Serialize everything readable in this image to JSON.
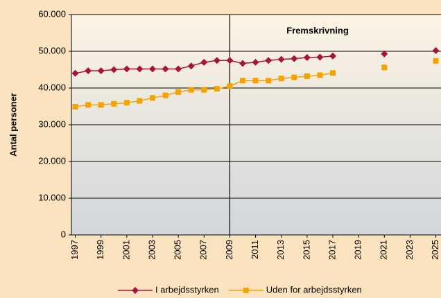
{
  "chart_data": {
    "type": "line",
    "ylabel": "Antal personer",
    "annotation": "Fremskrivning",
    "divider_x": 2009,
    "x": [
      1997,
      1998,
      1999,
      2000,
      2001,
      2002,
      2003,
      2004,
      2005,
      2006,
      2007,
      2008,
      2009,
      2010,
      2011,
      2012,
      2013,
      2014,
      2015,
      2016,
      2017,
      2018,
      2019,
      2020,
      2021,
      2022,
      2023,
      2024,
      2025
    ],
    "series": [
      {
        "name": "I arbejdsstyrken",
        "color": "#a8123e",
        "marker": "diamond",
        "values": [
          44000,
          44700,
          44700,
          45000,
          45200,
          45200,
          45200,
          45200,
          45200,
          46000,
          47000,
          47500,
          47500,
          46700,
          47000,
          47500,
          47800,
          48000,
          48300,
          48400,
          48700,
          null,
          null,
          null,
          49300,
          null,
          null,
          null,
          50200
        ]
      },
      {
        "name": "Uden for arbejdsstyrken",
        "color": "#f4a200",
        "marker": "square",
        "values": [
          34900,
          35400,
          35400,
          35700,
          36000,
          36500,
          37300,
          38000,
          38900,
          39500,
          39500,
          39800,
          40500,
          42000,
          42000,
          42000,
          42600,
          42900,
          43200,
          43500,
          44100,
          null,
          null,
          null,
          45600,
          null,
          null,
          null,
          47400
        ]
      }
    ],
    "xlim": [
      1996.7,
      2025.4
    ],
    "xticks": [
      1997,
      1999,
      2001,
      2003,
      2005,
      2007,
      2009,
      2011,
      2013,
      2015,
      2017,
      2019,
      2021,
      2023,
      2025
    ],
    "ylim": [
      0,
      60000
    ],
    "yticks": [
      {
        "value": 0,
        "label": "0"
      },
      {
        "value": 10000,
        "label": "10.000"
      },
      {
        "value": 20000,
        "label": "20.000"
      },
      {
        "value": 30000,
        "label": "30.000"
      },
      {
        "value": 40000,
        "label": "40.000"
      },
      {
        "value": 50000,
        "label": "50.000"
      },
      {
        "value": 60000,
        "label": "60.000"
      }
    ],
    "grid": true
  }
}
